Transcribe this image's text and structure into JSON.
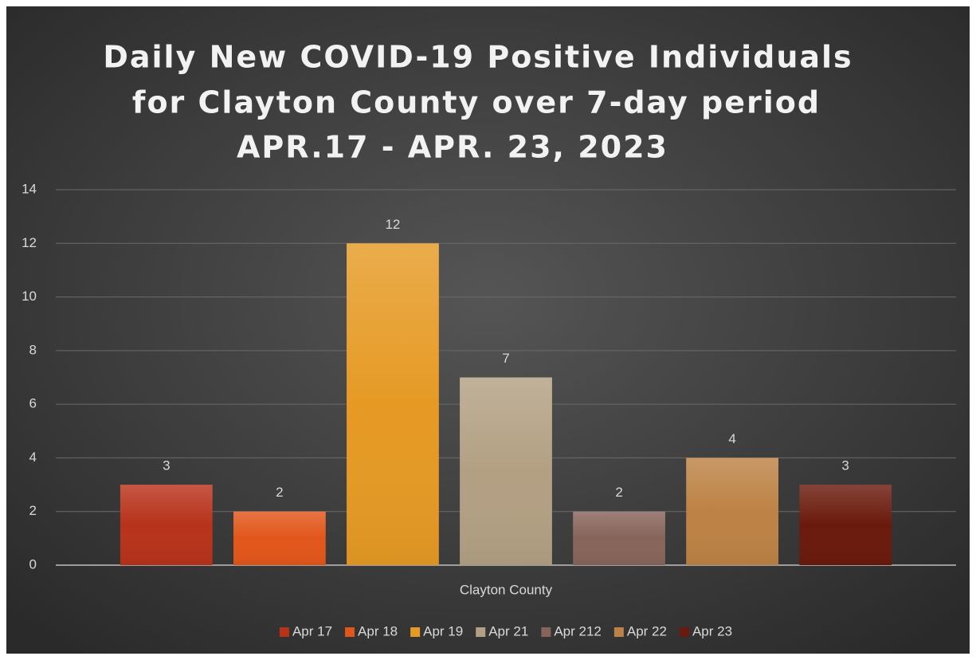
{
  "chart_data": {
    "type": "bar",
    "title": [
      "Daily New COVID-19 Positive Individuals",
      "for Clayton County over 7-day period",
      "APR.17 - APR. 23, 2023"
    ],
    "categories": [
      "Clayton County"
    ],
    "series": [
      {
        "name": "Apr 17",
        "color": "#b8321a",
        "values": [
          3
        ]
      },
      {
        "name": "Apr 18",
        "color": "#e2561a",
        "values": [
          2
        ]
      },
      {
        "name": "Apr 19",
        "color": "#e69a24",
        "values": [
          12
        ]
      },
      {
        "name": "Apr 21",
        "color": "#b3a083",
        "values": [
          7
        ]
      },
      {
        "name": "Apr 212",
        "color": "#87645a",
        "values": [
          2
        ]
      },
      {
        "name": "Apr 22",
        "color": "#bd8245",
        "values": [
          4
        ]
      },
      {
        "name": "Apr 23",
        "color": "#6a1a0c",
        "values": [
          3
        ]
      }
    ],
    "ylim": [
      0,
      14
    ],
    "yticks": [
      0,
      2,
      4,
      6,
      8,
      10,
      12,
      14
    ],
    "grid": true,
    "legend": "bottom"
  }
}
